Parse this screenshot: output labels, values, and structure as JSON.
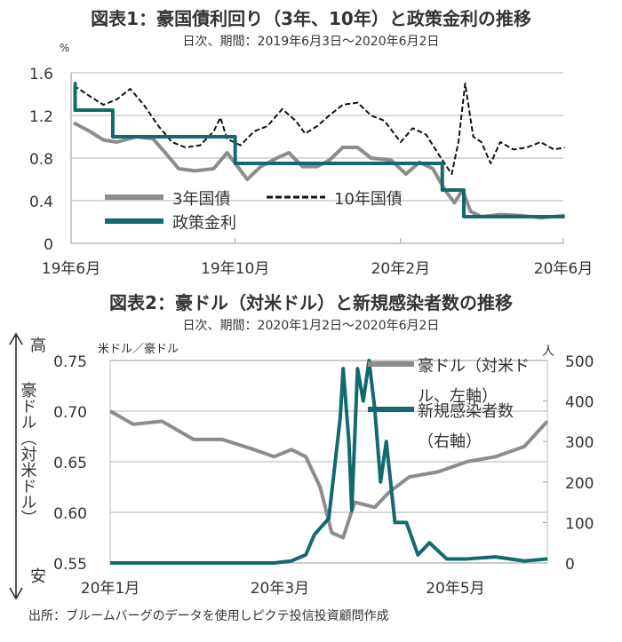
{
  "chart_data": [
    {
      "type": "line",
      "title": "図表1：豪国債利回り（3年、10年）と政策金利の推移",
      "subtitle": "日次、期間：2019年6月3日～2020年6月2日",
      "ylabel": "%",
      "ylim": [
        0,
        1.6
      ],
      "yticks": [
        "0",
        "0.4",
        "0.8",
        "1.2",
        "1.6"
      ],
      "ytick_values": [
        0,
        0.4,
        0.8,
        1.2,
        1.6
      ],
      "xlim": [
        "2019-06-01",
        "2020-06-01"
      ],
      "xticks": [
        {
          "date": "2019-06-01",
          "label": "19年6月"
        },
        {
          "date": "2019-10-01",
          "label": "19年10月"
        },
        {
          "date": "2020-02-01",
          "label": "20年2月"
        },
        {
          "date": "2020-06-01",
          "label": "20年6月"
        }
      ],
      "grid": true,
      "legend_placement": "bottom-left",
      "series": [
        {
          "name": "3年国債",
          "color": "#8c8c8c",
          "style": "solid",
          "points": [
            [
              "2019-06-03",
              1.13
            ],
            [
              "2019-06-15",
              1.05
            ],
            [
              "2019-06-25",
              0.97
            ],
            [
              "2019-07-05",
              0.95
            ],
            [
              "2019-07-20",
              1.0
            ],
            [
              "2019-08-01",
              0.98
            ],
            [
              "2019-08-10",
              0.85
            ],
            [
              "2019-08-20",
              0.7
            ],
            [
              "2019-09-01",
              0.68
            ],
            [
              "2019-09-15",
              0.7
            ],
            [
              "2019-09-25",
              0.85
            ],
            [
              "2019-10-01",
              0.75
            ],
            [
              "2019-10-10",
              0.6
            ],
            [
              "2019-10-20",
              0.72
            ],
            [
              "2019-11-01",
              0.8
            ],
            [
              "2019-11-10",
              0.85
            ],
            [
              "2019-11-20",
              0.72
            ],
            [
              "2019-12-01",
              0.72
            ],
            [
              "2019-12-10",
              0.78
            ],
            [
              "2019-12-20",
              0.9
            ],
            [
              "2019-12-31",
              0.9
            ],
            [
              "2020-01-10",
              0.8
            ],
            [
              "2020-01-25",
              0.78
            ],
            [
              "2020-02-05",
              0.65
            ],
            [
              "2020-02-15",
              0.76
            ],
            [
              "2020-02-25",
              0.7
            ],
            [
              "2020-03-05",
              0.5
            ],
            [
              "2020-03-12",
              0.38
            ],
            [
              "2020-03-18",
              0.5
            ],
            [
              "2020-03-24",
              0.3
            ],
            [
              "2020-04-01",
              0.25
            ],
            [
              "2020-04-15",
              0.27
            ],
            [
              "2020-05-01",
              0.26
            ],
            [
              "2020-05-15",
              0.24
            ],
            [
              "2020-06-02",
              0.26
            ]
          ]
        },
        {
          "name": "10年国債",
          "color": "#111111",
          "style": "dashed",
          "points": [
            [
              "2019-06-03",
              1.48
            ],
            [
              "2019-06-15",
              1.38
            ],
            [
              "2019-06-25",
              1.3
            ],
            [
              "2019-07-05",
              1.35
            ],
            [
              "2019-07-15",
              1.45
            ],
            [
              "2019-07-25",
              1.3
            ],
            [
              "2019-08-05",
              1.1
            ],
            [
              "2019-08-15",
              0.95
            ],
            [
              "2019-08-25",
              0.9
            ],
            [
              "2019-09-05",
              0.92
            ],
            [
              "2019-09-15",
              1.05
            ],
            [
              "2019-09-20",
              1.18
            ],
            [
              "2019-09-25",
              0.98
            ],
            [
              "2019-10-05",
              0.92
            ],
            [
              "2019-10-15",
              1.05
            ],
            [
              "2019-10-25",
              1.1
            ],
            [
              "2019-11-05",
              1.26
            ],
            [
              "2019-11-15",
              1.15
            ],
            [
              "2019-11-22",
              1.03
            ],
            [
              "2019-12-01",
              1.1
            ],
            [
              "2019-12-10",
              1.2
            ],
            [
              "2019-12-20",
              1.3
            ],
            [
              "2019-12-31",
              1.32
            ],
            [
              "2020-01-10",
              1.2
            ],
            [
              "2020-01-20",
              1.15
            ],
            [
              "2020-02-01",
              0.95
            ],
            [
              "2020-02-10",
              1.08
            ],
            [
              "2020-02-20",
              1.02
            ],
            [
              "2020-03-01",
              0.82
            ],
            [
              "2020-03-10",
              0.65
            ],
            [
              "2020-03-15",
              0.95
            ],
            [
              "2020-03-20",
              1.5
            ],
            [
              "2020-03-26",
              1.0
            ],
            [
              "2020-04-01",
              0.95
            ],
            [
              "2020-04-08",
              0.75
            ],
            [
              "2020-04-15",
              0.95
            ],
            [
              "2020-04-25",
              0.88
            ],
            [
              "2020-05-05",
              0.9
            ],
            [
              "2020-05-15",
              0.95
            ],
            [
              "2020-05-25",
              0.88
            ],
            [
              "2020-06-02",
              0.9
            ]
          ]
        },
        {
          "name": "政策金利",
          "color": "#126a6e",
          "style": "step",
          "points": [
            [
              "2019-06-03",
              1.5
            ],
            [
              "2019-06-04",
              1.25
            ],
            [
              "2019-07-02",
              1.0
            ],
            [
              "2019-10-01",
              0.75
            ],
            [
              "2020-03-03",
              0.5
            ],
            [
              "2020-03-19",
              0.25
            ],
            [
              "2020-06-02",
              0.25
            ]
          ]
        }
      ]
    },
    {
      "type": "line",
      "title": "図表2：豪ドル（対米ドル）と新規感染者数の推移",
      "subtitle": "日次、期間：2020年1月2日～2020年6月2日",
      "ylabel_left": "米ドル／豪ドル",
      "ylabel_right": "人",
      "side_label": "豪ドル（対米ドル）",
      "side_high": "高",
      "side_low": "安",
      "ylim_left": [
        0.55,
        0.75
      ],
      "ylim_right": [
        0,
        500
      ],
      "yticks_left": [
        "0.55",
        "0.60",
        "0.65",
        "0.70",
        "0.75"
      ],
      "yticks_left_values": [
        0.55,
        0.6,
        0.65,
        0.7,
        0.75
      ],
      "yticks_right": [
        "0",
        "100",
        "200",
        "300",
        "400",
        "500"
      ],
      "yticks_right_values": [
        0,
        100,
        200,
        300,
        400,
        500
      ],
      "xlim": [
        "2020-01-02",
        "2020-06-02"
      ],
      "xticks": [
        {
          "date": "2020-01-02",
          "label": "20年1月"
        },
        {
          "date": "2020-03-01",
          "label": "20年3月"
        },
        {
          "date": "2020-05-01",
          "label": "20年5月"
        }
      ],
      "grid": true,
      "legend_placement": "top-right",
      "series": [
        {
          "name": "豪ドル（対米ドル、左軸）",
          "legend_lines": [
            "豪ドル（対米ド",
            "ル、左軸）"
          ],
          "axis": "left",
          "color": "#8c8c8c",
          "points": [
            [
              "2020-01-02",
              0.7
            ],
            [
              "2020-01-10",
              0.687
            ],
            [
              "2020-01-20",
              0.69
            ],
            [
              "2020-01-31",
              0.672
            ],
            [
              "2020-02-10",
              0.672
            ],
            [
              "2020-02-20",
              0.663
            ],
            [
              "2020-02-28",
              0.655
            ],
            [
              "2020-03-05",
              0.662
            ],
            [
              "2020-03-10",
              0.655
            ],
            [
              "2020-03-15",
              0.625
            ],
            [
              "2020-03-19",
              0.58
            ],
            [
              "2020-03-23",
              0.575
            ],
            [
              "2020-03-27",
              0.61
            ],
            [
              "2020-04-03",
              0.605
            ],
            [
              "2020-04-08",
              0.62
            ],
            [
              "2020-04-15",
              0.635
            ],
            [
              "2020-04-25",
              0.64
            ],
            [
              "2020-05-05",
              0.65
            ],
            [
              "2020-05-15",
              0.655
            ],
            [
              "2020-05-25",
              0.665
            ],
            [
              "2020-06-02",
              0.69
            ]
          ]
        },
        {
          "name": "新規感染者数（右軸）",
          "legend_lines": [
            "新規感染者数",
            "（右軸）"
          ],
          "axis": "right",
          "color": "#126a6e",
          "points": [
            [
              "2020-01-02",
              0
            ],
            [
              "2020-02-28",
              0
            ],
            [
              "2020-03-05",
              5
            ],
            [
              "2020-03-10",
              20
            ],
            [
              "2020-03-13",
              70
            ],
            [
              "2020-03-18",
              110
            ],
            [
              "2020-03-22",
              360
            ],
            [
              "2020-03-23",
              480
            ],
            [
              "2020-03-25",
              300
            ],
            [
              "2020-03-26",
              130
            ],
            [
              "2020-03-28",
              480
            ],
            [
              "2020-03-30",
              400
            ],
            [
              "2020-04-01",
              500
            ],
            [
              "2020-04-03",
              380
            ],
            [
              "2020-04-05",
              200
            ],
            [
              "2020-04-07",
              300
            ],
            [
              "2020-04-10",
              100
            ],
            [
              "2020-04-14",
              100
            ],
            [
              "2020-04-18",
              20
            ],
            [
              "2020-04-22",
              50
            ],
            [
              "2020-04-28",
              10
            ],
            [
              "2020-05-05",
              10
            ],
            [
              "2020-05-15",
              15
            ],
            [
              "2020-05-25",
              5
            ],
            [
              "2020-06-02",
              10
            ]
          ]
        }
      ]
    }
  ],
  "source": "出所：ブルームバーグのデータを使用しピクテ投信投資顧問作成"
}
